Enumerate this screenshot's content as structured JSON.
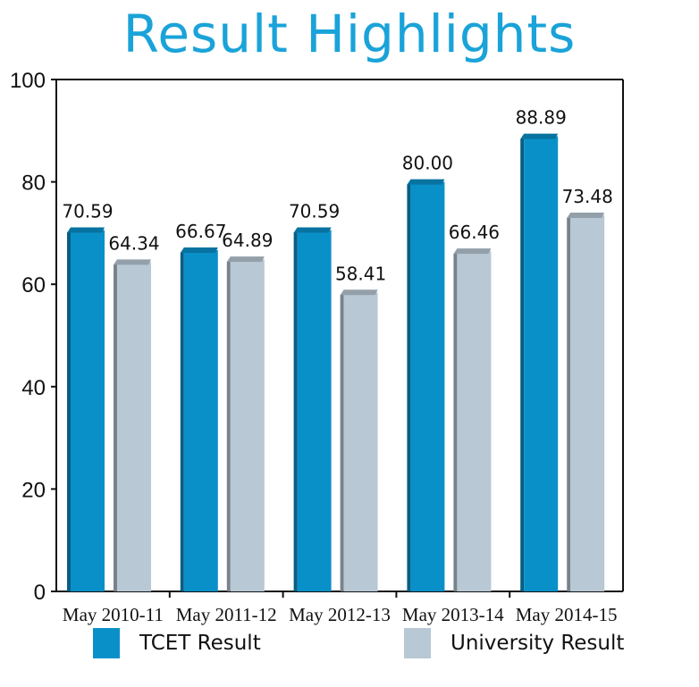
{
  "chart_data": {
    "type": "bar",
    "title": "Result Highlights",
    "categories": [
      "May 2010-11",
      "May 2011-12",
      "May 2012-13",
      "May 2013-14",
      "May 2014-15"
    ],
    "series": [
      {
        "name": "TCET Result",
        "values": [
          70.59,
          66.67,
          70.59,
          80.0,
          88.89
        ],
        "labels": [
          "70.59",
          "66.67",
          "70.59",
          "80.00",
          "88.89"
        ],
        "color": "#0a90c8"
      },
      {
        "name": "University Result",
        "values": [
          64.34,
          64.89,
          58.41,
          66.46,
          73.48
        ],
        "labels": [
          "64.34",
          "64.89",
          "58.41",
          "66.46",
          "73.48"
        ],
        "color": "#b8c8d4"
      }
    ],
    "ylim": [
      0,
      100
    ],
    "yticks": [
      "0",
      "20",
      "40",
      "60",
      "80",
      "100"
    ],
    "xlabel": "",
    "ylabel": "",
    "grid": false,
    "legend_position": "bottom"
  }
}
